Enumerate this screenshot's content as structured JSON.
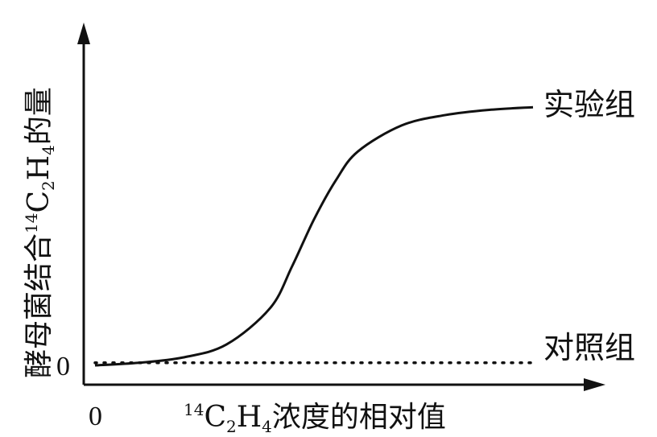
{
  "chart_data": {
    "type": "line",
    "xlabel": {
      "superscript": "14",
      "c": "C",
      "sub1": "2",
      "h": "H",
      "sub2": "4",
      "rest": "浓度的相对值"
    },
    "ylabel": {
      "prefix": "酵母菌结合",
      "superscript": "14",
      "c": "C",
      "sub1": "2",
      "h": "H",
      "sub2": "4",
      "suffix": "的量"
    },
    "x_origin_label": "0",
    "y_origin_label": "0",
    "xlim": [
      0,
      1
    ],
    "ylim": [
      0,
      1
    ],
    "grid": false,
    "series": [
      {
        "name": "实验组",
        "style": "solid",
        "x": [
          0,
          0.1,
          0.2,
          0.3,
          0.4,
          0.45,
          0.5,
          0.55,
          0.6,
          0.7,
          0.8,
          0.9,
          1.0
        ],
        "y": [
          0,
          0.01,
          0.03,
          0.08,
          0.22,
          0.38,
          0.56,
          0.71,
          0.82,
          0.92,
          0.96,
          0.98,
          0.99
        ]
      },
      {
        "name": "对照组",
        "style": "dotted",
        "x": [
          0,
          1.0
        ],
        "y": [
          0.01,
          0.01
        ]
      }
    ]
  }
}
